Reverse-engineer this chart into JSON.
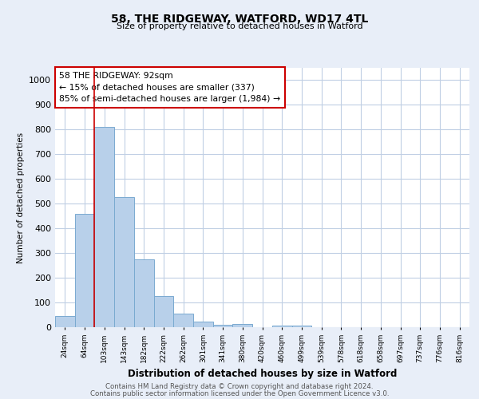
{
  "title1": "58, THE RIDGEWAY, WATFORD, WD17 4TL",
  "title2": "Size of property relative to detached houses in Watford",
  "xlabel": "Distribution of detached houses by size in Watford",
  "ylabel": "Number of detached properties",
  "categories": [
    "24sqm",
    "64sqm",
    "103sqm",
    "143sqm",
    "182sqm",
    "222sqm",
    "262sqm",
    "301sqm",
    "341sqm",
    "380sqm",
    "420sqm",
    "460sqm",
    "499sqm",
    "539sqm",
    "578sqm",
    "618sqm",
    "658sqm",
    "697sqm",
    "737sqm",
    "776sqm",
    "816sqm"
  ],
  "values": [
    45,
    460,
    810,
    525,
    275,
    125,
    55,
    22,
    10,
    12,
    0,
    8,
    8,
    0,
    0,
    0,
    0,
    0,
    0,
    0,
    0
  ],
  "bar_color": "#b8d0ea",
  "bar_edge_color": "#7aaad0",
  "vline_x": 1.5,
  "vline_color": "#cc0000",
  "annotation_text": "58 THE RIDGEWAY: 92sqm\n← 15% of detached houses are smaller (337)\n85% of semi-detached houses are larger (1,984) →",
  "annotation_box_color": "#ffffff",
  "annotation_box_edge": "#cc0000",
  "ylim": [
    0,
    1050
  ],
  "yticks": [
    0,
    100,
    200,
    300,
    400,
    500,
    600,
    700,
    800,
    900,
    1000
  ],
  "footer1": "Contains HM Land Registry data © Crown copyright and database right 2024.",
  "footer2": "Contains public sector information licensed under the Open Government Licence v3.0.",
  "bg_color": "#e8eef8",
  "plot_bg_color": "#ffffff",
  "grid_color": "#c0cfe4"
}
